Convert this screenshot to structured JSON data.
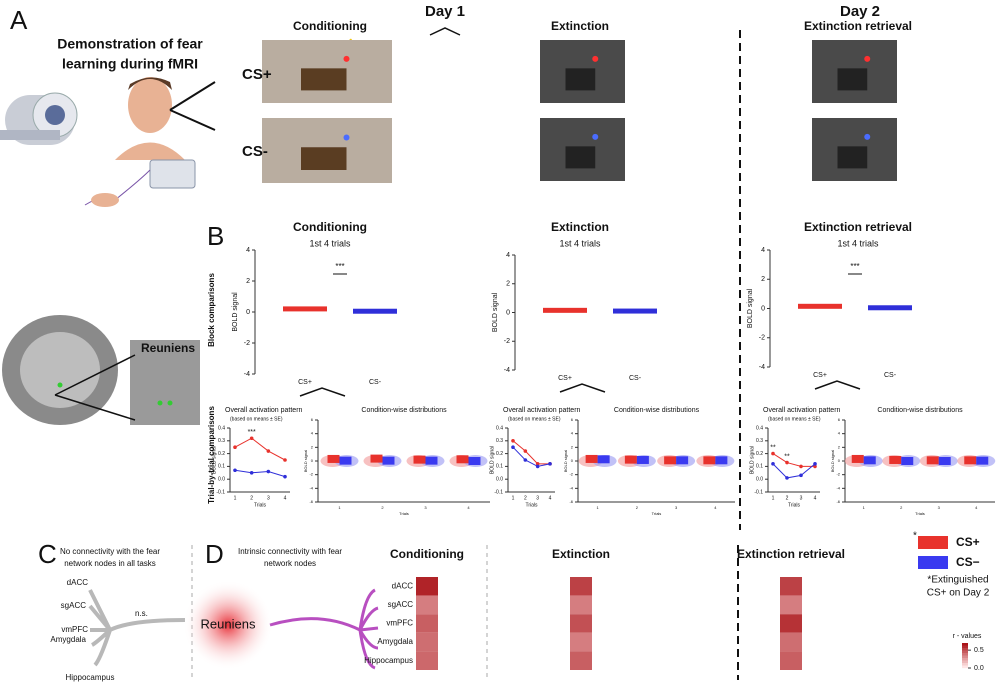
{
  "panel_labels": [
    "A",
    "B",
    "C",
    "D"
  ],
  "days": [
    "Day 1",
    "Day 2"
  ],
  "panel_a": {
    "title": [
      "Demonstration of fear",
      "learning during  fMRI"
    ],
    "phases": [
      "Conditioning",
      "Extinction",
      "Extinction retrieval"
    ],
    "cs_labels": [
      "CS+",
      "CS-"
    ]
  },
  "brain": {
    "label": "Reuniens"
  },
  "panel_b": {
    "row_labels": [
      "Block comparisons",
      "Trial-by-trial comparisons"
    ],
    "phases": [
      {
        "title": "Conditioning",
        "subtitle": "1st 4 trials",
        "block": {
          "ylabel": "BOLD signal",
          "ylim": [
            -4,
            4
          ],
          "yticks": [
            4,
            2,
            0,
            -2,
            -4
          ],
          "categories": [
            "CS+",
            "CS-"
          ],
          "values": [
            0.2,
            0.05
          ],
          "sig": "***"
        },
        "trial": {
          "title": "Overall activation pattern",
          "note": "(based on means ± SE)",
          "ylabel": "BOLD signal",
          "xlabel": "Trials",
          "x": [
            1,
            2,
            3,
            4
          ],
          "ylim": [
            -0.1,
            0.4
          ],
          "yticks": [
            0.4,
            0.3,
            0.2,
            0.1,
            {
              "value": 0,
              "label": "0.0"
            },
            -0.1
          ],
          "series": [
            {
              "name": "CS+",
              "color": "#e8322c",
              "values": [
                0.25,
                0.32,
                0.22,
                0.15
              ]
            },
            {
              "name": "CS-",
              "color": "#2f2fd9",
              "values": [
                0.07,
                0.05,
                0.06,
                0.02
              ]
            }
          ],
          "sig": [
            null,
            "***",
            null,
            null
          ]
        },
        "dist": {
          "title": "Condition-wise distributions",
          "ylabel": "BOLD signal",
          "xlabel": "Trials",
          "x": [
            1,
            2,
            3,
            4
          ],
          "ylim": [
            -6,
            6
          ],
          "yticks": [
            6,
            4,
            2,
            0,
            -2,
            -4,
            -6
          ],
          "series": [
            {
              "name": "CS+",
              "values": [
                0.3,
                0.35,
                0.2,
                0.25
              ]
            },
            {
              "name": "CS-",
              "values": [
                0.05,
                0.05,
                0.05,
                0.0
              ]
            }
          ]
        }
      },
      {
        "title": "Extinction",
        "subtitle": "1st 4 trials",
        "block": {
          "ylabel": "BOLD signal",
          "ylim": [
            -4,
            4
          ],
          "yticks": [
            4,
            2,
            0,
            -2,
            -4
          ],
          "categories": [
            "CS+",
            "CS-"
          ],
          "values": [
            0.15,
            0.1
          ],
          "sig": null
        },
        "trial": {
          "title": "Overall activation pattern",
          "note": "(based on means ± SE)",
          "ylabel": "BOLD signal",
          "xlabel": "Trials",
          "x": [
            1,
            2,
            3,
            4
          ],
          "ylim": [
            -0.1,
            0.4
          ],
          "yticks": [
            0.4,
            0.3,
            0.2,
            0.1,
            {
              "value": 0,
              "label": "0.0"
            },
            -0.1
          ],
          "series": [
            {
              "name": "CS+",
              "color": "#e8322c",
              "values": [
                0.3,
                0.22,
                0.12,
                0.12
              ]
            },
            {
              "name": "CS-",
              "color": "#2f2fd9",
              "values": [
                0.25,
                0.15,
                0.1,
                0.12
              ]
            }
          ],
          "sig": [
            null,
            null,
            null,
            null
          ]
        },
        "dist": {
          "title": "Condition-wise distributions",
          "ylabel": "BOLD signal",
          "xlabel": "Trials",
          "x": [
            1,
            2,
            3,
            4
          ],
          "ylim": [
            -6,
            6
          ],
          "yticks": [
            6,
            4,
            2,
            0,
            -2,
            -4,
            -6
          ],
          "series": [
            {
              "name": "CS+",
              "values": [
                0.3,
                0.2,
                0.1,
                0.1
              ]
            },
            {
              "name": "CS-",
              "values": [
                0.25,
                0.15,
                0.1,
                0.1
              ]
            }
          ]
        }
      },
      {
        "title": "Extinction retrieval",
        "subtitle": "1st 4 trials",
        "block": {
          "ylabel": "BOLD signal",
          "ylim": [
            -4,
            4
          ],
          "yticks": [
            4,
            2,
            0,
            -2,
            -4
          ],
          "categories": [
            "CS+",
            "CS-"
          ],
          "values": [
            0.15,
            0.05
          ],
          "sig": "***"
        },
        "trial": {
          "title": "Overall activation pattern",
          "note": "(based on means ± SE)",
          "ylabel": "BOLD signal",
          "xlabel": "Trials",
          "x": [
            1,
            2,
            3,
            4
          ],
          "ylim": [
            -0.1,
            0.4
          ],
          "yticks": [
            0.4,
            0.3,
            0.2,
            0.1,
            {
              "value": 0,
              "label": "0.0"
            },
            -0.1
          ],
          "series": [
            {
              "name": "CS+",
              "color": "#e8322c",
              "values": [
                0.2,
                0.13,
                0.1,
                0.1
              ]
            },
            {
              "name": "CS-",
              "color": "#2f2fd9",
              "values": [
                0.12,
                0.01,
                0.03,
                0.12
              ]
            }
          ],
          "sig": [
            "**",
            "**",
            null,
            null
          ]
        },
        "dist": {
          "title": "Condition-wise distributions",
          "ylabel": "BOLD signal",
          "xlabel": "Trials",
          "x": [
            1,
            2,
            3,
            4
          ],
          "ylim": [
            -6,
            6
          ],
          "yticks": [
            6,
            4,
            2,
            0,
            -2,
            -4,
            -6
          ],
          "series": [
            {
              "name": "CS+",
              "values": [
                0.3,
                0.15,
                0.1,
                0.1
              ]
            },
            {
              "name": "CS-",
              "values": [
                0.1,
                0.0,
                0.0,
                0.05
              ]
            }
          ]
        }
      }
    ]
  },
  "panel_c": {
    "text": [
      "No connectivity with the fear",
      "network nodes in all tasks"
    ],
    "nodes": [
      "dACC",
      "sgACC",
      "vmPFC",
      "Amygdala",
      "Hippocampus"
    ],
    "ns": "n.s."
  },
  "panel_d": {
    "text": [
      "Intrinsic connectivity with fear",
      "network nodes"
    ],
    "seed": "Reuniens",
    "nodes": [
      "dACC",
      "sgACC",
      "vmPFC",
      "Amygdala",
      "Hippocampus"
    ],
    "heatmaps": [
      {
        "title": "Conditioning",
        "values": [
          0.65,
          0.35,
          0.45,
          0.4,
          0.42
        ]
      },
      {
        "title": "Extinction",
        "values": [
          0.55,
          0.35,
          0.5,
          0.35,
          0.45
        ]
      },
      {
        "title": "Extinction retrieval",
        "values": [
          0.55,
          0.35,
          0.6,
          0.4,
          0.45
        ]
      }
    ]
  },
  "legend": {
    "items": [
      {
        "name": "CS+",
        "color": "#e8322c"
      },
      {
        "name": "CS−",
        "color": "#3a3af0"
      }
    ],
    "star": "*",
    "note": [
      "*Extinguished",
      "CS+ on Day 2"
    ],
    "colorbar": {
      "title": "r - values",
      "ticks": [
        0.5,
        {
          "value": 0,
          "label": "0.0"
        }
      ]
    }
  }
}
